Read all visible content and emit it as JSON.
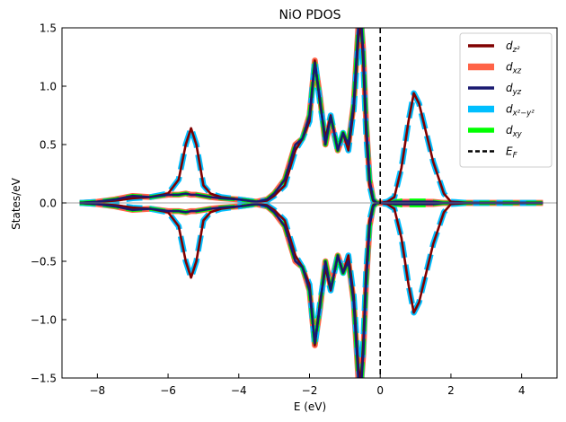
{
  "chart_data": {
    "type": "line",
    "title": "NiO PDOS",
    "xlabel": "E (eV)",
    "ylabel": "States/eV",
    "xlim": [
      -9,
      5
    ],
    "ylim": [
      -1.5,
      1.5
    ],
    "xticks": [
      -8,
      -6,
      -4,
      -2,
      0,
      2,
      4
    ],
    "yticks": [
      -1.5,
      -1.0,
      -0.5,
      0.0,
      0.5,
      1.0,
      1.5
    ],
    "xtick_labels": [
      "−8",
      "−6",
      "−4",
      "−2",
      "0",
      "2",
      "4"
    ],
    "ytick_labels": [
      "−1.5",
      "−1.0",
      "−0.5",
      "0.0",
      "0.5",
      "1.0",
      "1.5"
    ],
    "legend_position": "top-right",
    "fermi_energy": 0,
    "spin_down_mirrored": true,
    "series": [
      {
        "name": "d_z²",
        "legend_main": "d",
        "legend_sub": "z²",
        "color": "#800000",
        "style": "solid",
        "x": [
          -8.5,
          -8.0,
          -7.5,
          -7.0,
          -6.5,
          -6.0,
          -5.7,
          -5.5,
          -5.35,
          -5.2,
          -5.0,
          -4.8,
          -4.5,
          -4.0,
          -3.5,
          -3.2,
          -3.0,
          -2.7,
          -2.4,
          -2.2,
          -2.0,
          -1.85,
          -1.7,
          -1.55,
          -1.4,
          -1.3,
          -1.2,
          -1.05,
          -0.9,
          -0.75,
          -0.62,
          -0.55,
          -0.48,
          -0.4,
          -0.3,
          -0.2,
          -0.1,
          0.0,
          0.2,
          0.4,
          0.6,
          0.8,
          0.95,
          1.1,
          1.3,
          1.5,
          1.8,
          2.0,
          2.5,
          3.0,
          4.0,
          4.6
        ],
        "values": [
          0.0,
          0.01,
          0.02,
          0.04,
          0.05,
          0.08,
          0.2,
          0.5,
          0.64,
          0.5,
          0.15,
          0.08,
          0.05,
          0.03,
          0.01,
          0.02,
          0.06,
          0.15,
          0.45,
          0.55,
          0.7,
          1.22,
          0.85,
          0.55,
          0.75,
          0.6,
          0.45,
          0.6,
          0.45,
          0.8,
          1.4,
          1.55,
          1.2,
          0.6,
          0.15,
          0.02,
          0.0,
          0.0,
          0.01,
          0.05,
          0.3,
          0.7,
          0.94,
          0.85,
          0.6,
          0.35,
          0.08,
          0.01,
          0.0,
          0.0,
          0.0,
          0.0
        ]
      },
      {
        "name": "d_xz",
        "legend_main": "d",
        "legend_sub": "xz",
        "color": "#ff6347",
        "style": "solid",
        "x": [
          -8.5,
          -8.0,
          -7.5,
          -7.0,
          -6.5,
          -6.0,
          -5.7,
          -5.5,
          -5.35,
          -5.2,
          -5.0,
          -4.8,
          -4.5,
          -4.0,
          -3.5,
          -3.2,
          -3.0,
          -2.7,
          -2.4,
          -2.2,
          -2.0,
          -1.85,
          -1.7,
          -1.55,
          -1.4,
          -1.3,
          -1.2,
          -1.05,
          -0.9,
          -0.75,
          -0.62,
          -0.55,
          -0.48,
          -0.4,
          -0.3,
          -0.2,
          -0.1,
          0.0,
          0.2,
          0.4,
          0.6,
          0.8,
          0.95,
          1.1,
          1.3,
          1.5,
          1.8,
          2.0,
          2.5,
          3.0,
          4.0,
          4.6
        ],
        "values": [
          0.0,
          0.01,
          0.03,
          0.06,
          0.05,
          0.07,
          0.07,
          0.08,
          0.07,
          0.07,
          0.06,
          0.05,
          0.04,
          0.03,
          0.01,
          0.03,
          0.08,
          0.2,
          0.5,
          0.55,
          0.75,
          1.22,
          0.9,
          0.5,
          0.72,
          0.58,
          0.45,
          0.58,
          0.5,
          0.85,
          1.5,
          1.6,
          1.3,
          0.7,
          0.2,
          0.03,
          0.0,
          0.0,
          0.0,
          0.01,
          0.01,
          0.01,
          0.01,
          0.01,
          0.01,
          0.01,
          0.0,
          0.0,
          0.0,
          0.0,
          0.0,
          0.0
        ]
      },
      {
        "name": "d_yz",
        "legend_main": "d",
        "legend_sub": "yz",
        "color": "#191970",
        "style": "solid",
        "x": [
          -8.5,
          -8.0,
          -7.5,
          -7.0,
          -6.5,
          -6.0,
          -5.7,
          -5.5,
          -5.35,
          -5.2,
          -5.0,
          -4.8,
          -4.5,
          -4.0,
          -3.5,
          -3.2,
          -3.0,
          -2.7,
          -2.4,
          -2.2,
          -2.0,
          -1.85,
          -1.7,
          -1.55,
          -1.4,
          -1.3,
          -1.2,
          -1.05,
          -0.9,
          -0.75,
          -0.62,
          -0.55,
          -0.48,
          -0.4,
          -0.3,
          -0.2,
          -0.1,
          0.0,
          0.2,
          0.4,
          0.6,
          0.8,
          0.95,
          1.1,
          1.3,
          1.5,
          1.8,
          2.0,
          2.5,
          3.0,
          4.0,
          4.6
        ],
        "values": [
          0.0,
          0.01,
          0.03,
          0.06,
          0.05,
          0.07,
          0.07,
          0.08,
          0.07,
          0.07,
          0.06,
          0.05,
          0.04,
          0.03,
          0.01,
          0.03,
          0.08,
          0.2,
          0.5,
          0.55,
          0.75,
          1.2,
          0.88,
          0.5,
          0.74,
          0.6,
          0.45,
          0.6,
          0.5,
          0.85,
          1.5,
          1.6,
          1.3,
          0.7,
          0.2,
          0.03,
          0.0,
          0.0,
          0.0,
          0.01,
          0.01,
          0.01,
          0.01,
          0.01,
          0.01,
          0.01,
          0.0,
          0.0,
          0.0,
          0.0,
          0.0,
          0.0
        ]
      },
      {
        "name": "d_x²−y²",
        "legend_main": "d",
        "legend_sub": "x²−y²",
        "color": "#00bfff",
        "style": "dashed",
        "x": [
          -8.5,
          -8.0,
          -7.5,
          -7.0,
          -6.5,
          -6.0,
          -5.7,
          -5.5,
          -5.35,
          -5.2,
          -5.0,
          -4.8,
          -4.5,
          -4.0,
          -3.5,
          -3.2,
          -3.0,
          -2.7,
          -2.4,
          -2.2,
          -2.0,
          -1.85,
          -1.7,
          -1.55,
          -1.4,
          -1.3,
          -1.2,
          -1.05,
          -0.9,
          -0.75,
          -0.62,
          -0.55,
          -0.48,
          -0.4,
          -0.3,
          -0.2,
          -0.1,
          0.0,
          0.2,
          0.4,
          0.6,
          0.8,
          0.95,
          1.1,
          1.3,
          1.5,
          1.8,
          2.0,
          2.5,
          3.0,
          4.0,
          4.6
        ],
        "values": [
          0.0,
          0.01,
          0.02,
          0.04,
          0.05,
          0.08,
          0.2,
          0.5,
          0.64,
          0.5,
          0.15,
          0.08,
          0.05,
          0.03,
          0.01,
          0.02,
          0.06,
          0.15,
          0.45,
          0.55,
          0.7,
          1.22,
          0.85,
          0.55,
          0.75,
          0.6,
          0.45,
          0.6,
          0.45,
          0.8,
          1.4,
          1.55,
          1.2,
          0.6,
          0.15,
          0.02,
          0.0,
          0.0,
          0.01,
          0.05,
          0.3,
          0.7,
          0.94,
          0.85,
          0.6,
          0.35,
          0.08,
          0.01,
          0.0,
          0.0,
          0.0,
          0.0
        ]
      },
      {
        "name": "d_xy",
        "legend_main": "d",
        "legend_sub": "xy",
        "color": "#00ff00",
        "style": "dashed",
        "x": [
          -8.5,
          -8.0,
          -7.5,
          -7.0,
          -6.5,
          -6.0,
          -5.7,
          -5.5,
          -5.35,
          -5.2,
          -5.0,
          -4.8,
          -4.5,
          -4.0,
          -3.5,
          -3.2,
          -3.0,
          -2.7,
          -2.4,
          -2.2,
          -2.0,
          -1.85,
          -1.7,
          -1.55,
          -1.4,
          -1.3,
          -1.2,
          -1.05,
          -0.9,
          -0.75,
          -0.62,
          -0.55,
          -0.48,
          -0.4,
          -0.3,
          -0.2,
          -0.1,
          0.0,
          0.2,
          0.4,
          0.6,
          0.8,
          0.95,
          1.1,
          1.3,
          1.5,
          1.8,
          2.0,
          2.5,
          3.0,
          4.0,
          4.6
        ],
        "values": [
          0.0,
          0.01,
          0.03,
          0.06,
          0.05,
          0.07,
          0.07,
          0.08,
          0.07,
          0.07,
          0.06,
          0.05,
          0.04,
          0.03,
          0.01,
          0.03,
          0.08,
          0.2,
          0.5,
          0.55,
          0.75,
          1.2,
          0.88,
          0.5,
          0.73,
          0.6,
          0.45,
          0.6,
          0.5,
          0.85,
          1.5,
          1.6,
          1.3,
          0.7,
          0.2,
          0.03,
          0.0,
          0.0,
          0.0,
          0.01,
          0.02,
          0.02,
          0.02,
          0.02,
          0.02,
          0.01,
          0.0,
          0.0,
          0.0,
          0.0,
          0.0,
          0.0
        ]
      }
    ],
    "fermi_line": {
      "name": "E_F",
      "legend_main": "E",
      "legend_sub": "F",
      "color": "#000000",
      "style": "dashed"
    }
  }
}
